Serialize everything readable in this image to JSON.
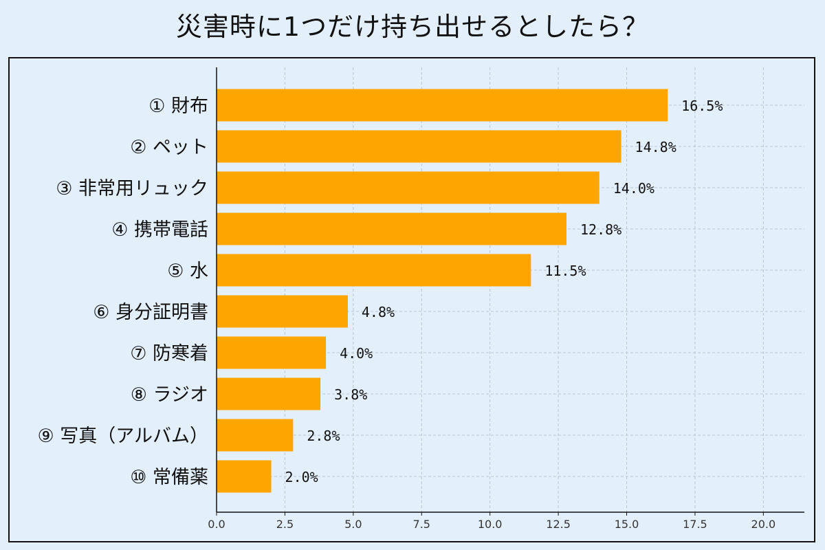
{
  "chart_data": {
    "type": "bar",
    "orientation": "horizontal",
    "title": "災害時に1つだけ持ち出せるとしたら？",
    "categories": [
      "① 財布",
      "② ペット",
      "③ 非常用リュック",
      "④ 携帯電話",
      "⑤ 水",
      "⑥ 身分証明書",
      "⑦ 防寒着",
      "⑧ ラジオ",
      "⑨ 写真（アルバム）",
      "⑩ 常備薬"
    ],
    "values": [
      16.5,
      14.8,
      14.0,
      12.8,
      11.5,
      4.8,
      4.0,
      3.8,
      2.8,
      2.0
    ],
    "value_labels": [
      "16.5%",
      "14.8%",
      "14.0%",
      "12.8%",
      "11.5%",
      "4.8%",
      "4.0%",
      "3.8%",
      "2.8%",
      "2.0%"
    ],
    "xticks": [
      "0.0",
      "2.5",
      "5.0",
      "7.5",
      "10.0",
      "12.5",
      "15.0",
      "17.5",
      "20.0"
    ],
    "xlim": [
      0,
      21.5
    ],
    "xlabel": "",
    "ylabel": "",
    "grid": true,
    "bar_color": "#ffa500",
    "background_color": "#e3f0fc"
  }
}
